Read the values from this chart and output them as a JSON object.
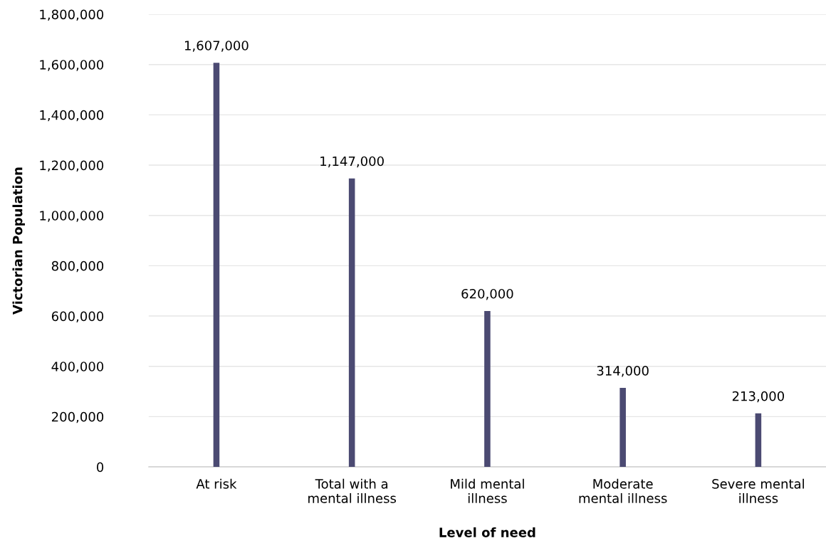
{
  "chart_data": {
    "type": "bar",
    "xlabel": "Level of need",
    "ylabel": "Victorian Population",
    "categories": [
      "At risk",
      "Total with a\nmental illness",
      "Mild mental\nillness",
      "Moderate\nmental illness",
      "Severe mental\nillness"
    ],
    "values": [
      1607000,
      1147000,
      620000,
      314000,
      213000
    ],
    "color": "#4b4a72",
    "ylim": [
      0,
      1800000
    ],
    "yticks": [
      {
        "value": 0,
        "label": "0"
      },
      {
        "value": 200000,
        "label": "200,000"
      },
      {
        "value": 400000,
        "label": "400,000"
      },
      {
        "value": 600000,
        "label": "600,000"
      },
      {
        "value": 800000,
        "label": "800,000"
      },
      {
        "value": 1000000,
        "label": "1,000,000"
      },
      {
        "value": 1200000,
        "label": "1,200,000"
      },
      {
        "value": 1400000,
        "label": "1,400,000"
      },
      {
        "value": 1600000,
        "label": "1,600,000"
      },
      {
        "value": 1800000,
        "label": "1,800,000"
      }
    ],
    "value_labels": [
      "1,607,000",
      "1,147,000",
      "620,000",
      "314,000",
      "213,000"
    ],
    "grid": "y",
    "legend": false
  }
}
